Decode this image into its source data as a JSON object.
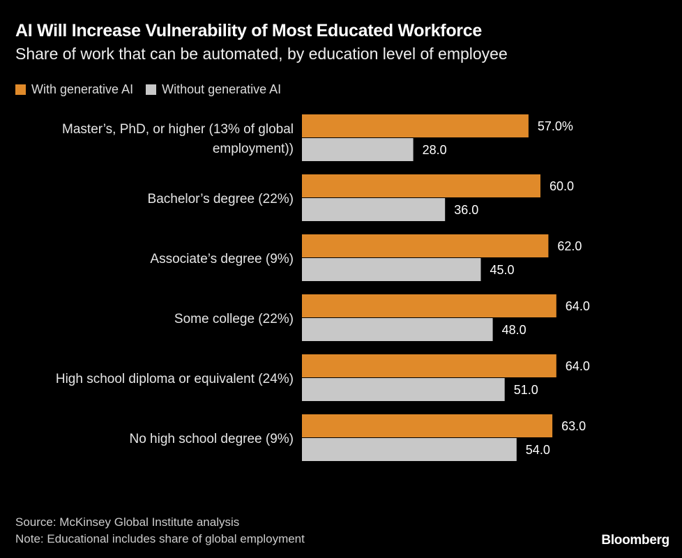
{
  "chart_data": {
    "type": "bar",
    "orientation": "horizontal",
    "title": "AI Will Increase Vulnerability of Most Educated Workforce",
    "subtitle": "Share of work that can be automated, by education level of employee",
    "categories": [
      "Master’s, PhD, or higher (13% of global employment))",
      "Bachelor’s degree (22%)",
      "Associate’s degree (9%)",
      "Some college (22%)",
      "High school diploma or equivalent (24%)",
      "No high school degree (9%)"
    ],
    "category_lines": [
      [
        "Master’s, PhD, or higher (13% of global",
        "employment))"
      ],
      [
        "Bachelor’s degree (22%)"
      ],
      [
        "Associate’s degree (9%)"
      ],
      [
        "Some college (22%)"
      ],
      [
        "High school diploma or equivalent (24%)"
      ],
      [
        "No high school degree (9%)"
      ]
    ],
    "series": [
      {
        "name": "With generative AI",
        "color": "#e08a2a",
        "values": [
          57.0,
          60.0,
          62.0,
          64.0,
          64.0,
          63.0
        ],
        "labels": [
          "57.0%",
          "60.0",
          "62.0",
          "64.0",
          "64.0",
          "63.0"
        ]
      },
      {
        "name": "Without generative AI",
        "color": "#c8c8c8",
        "values": [
          28.0,
          36.0,
          45.0,
          48.0,
          51.0,
          54.0
        ],
        "labels": [
          "28.0",
          "36.0",
          "45.0",
          "48.0",
          "51.0",
          "54.0"
        ]
      }
    ],
    "unit": "%",
    "legend_position": "top-left",
    "grid": false,
    "xlim": [
      0,
      100
    ]
  },
  "footer": {
    "source": "Source: McKinsey Global Institute analysis",
    "note": "Note: Educational includes share of global employment",
    "brand": "Bloomberg"
  }
}
